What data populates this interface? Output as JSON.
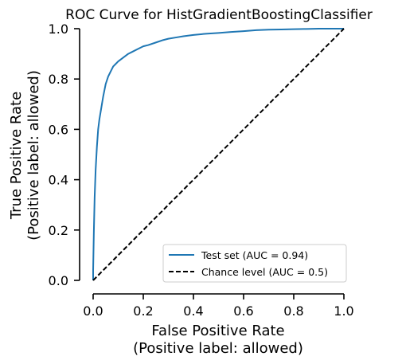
{
  "chart_data": {
    "type": "line",
    "title": "ROC Curve for HistGradientBoostingClassifier",
    "xlabel": "False Positive Rate",
    "xlabel_sub": "(Positive label: allowed)",
    "ylabel": "True Positive Rate",
    "ylabel_sub": "(Positive label: allowed)",
    "xlim": [
      0,
      1
    ],
    "ylim": [
      0,
      1
    ],
    "xticks": [
      "0.0",
      "0.2",
      "0.4",
      "0.6",
      "0.8",
      "1.0"
    ],
    "yticks": [
      "0.0",
      "0.2",
      "0.4",
      "0.6",
      "0.8",
      "1.0"
    ],
    "grid": false,
    "legend_position": "bottom-right",
    "series": [
      {
        "name": "Test set (AUC = 0.94)",
        "color": "#1f77b4",
        "style": "solid",
        "x": [
          0.0,
          0.0,
          0.003,
          0.006,
          0.01,
          0.015,
          0.02,
          0.025,
          0.03,
          0.04,
          0.05,
          0.06,
          0.07,
          0.08,
          0.09,
          0.1,
          0.12,
          0.14,
          0.16,
          0.18,
          0.2,
          0.22,
          0.25,
          0.28,
          0.3,
          0.33,
          0.36,
          0.4,
          0.45,
          0.5,
          0.55,
          0.6,
          0.65,
          0.7,
          0.75,
          0.8,
          0.85,
          0.9,
          0.95,
          1.0
        ],
        "y": [
          0.0,
          0.04,
          0.2,
          0.33,
          0.44,
          0.53,
          0.6,
          0.64,
          0.67,
          0.73,
          0.78,
          0.81,
          0.83,
          0.85,
          0.86,
          0.87,
          0.885,
          0.9,
          0.91,
          0.92,
          0.93,
          0.935,
          0.945,
          0.955,
          0.96,
          0.965,
          0.97,
          0.975,
          0.98,
          0.983,
          0.987,
          0.99,
          0.994,
          0.996,
          0.997,
          0.998,
          0.999,
          1.0,
          1.0,
          1.0
        ]
      },
      {
        "name": "Chance level (AUC = 0.5)",
        "color": "#000000",
        "style": "dashed",
        "x": [
          0,
          1
        ],
        "y": [
          0,
          1
        ]
      }
    ]
  }
}
